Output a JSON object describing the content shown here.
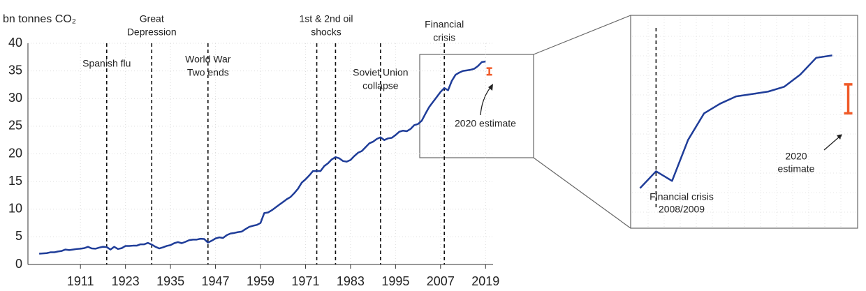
{
  "chart_data": {
    "type": "line",
    "y_label": "bn tonnes CO₂",
    "x": [
      1900,
      1901,
      1902,
      1903,
      1904,
      1905,
      1906,
      1907,
      1908,
      1909,
      1910,
      1911,
      1912,
      1913,
      1914,
      1915,
      1916,
      1917,
      1918,
      1919,
      1920,
      1921,
      1922,
      1923,
      1924,
      1925,
      1926,
      1927,
      1928,
      1929,
      1930,
      1931,
      1932,
      1933,
      1934,
      1935,
      1936,
      1937,
      1938,
      1939,
      1940,
      1941,
      1942,
      1943,
      1944,
      1945,
      1946,
      1947,
      1948,
      1949,
      1950,
      1951,
      1952,
      1953,
      1954,
      1955,
      1956,
      1957,
      1958,
      1959,
      1960,
      1961,
      1962,
      1963,
      1964,
      1965,
      1966,
      1967,
      1968,
      1969,
      1970,
      1971,
      1972,
      1973,
      1974,
      1975,
      1976,
      1977,
      1978,
      1979,
      1980,
      1981,
      1982,
      1983,
      1984,
      1985,
      1986,
      1987,
      1988,
      1989,
      1990,
      1991,
      1992,
      1993,
      1994,
      1995,
      1996,
      1997,
      1998,
      1999,
      2000,
      2001,
      2002,
      2003,
      2004,
      2005,
      2006,
      2007,
      2008,
      2009,
      2010,
      2011,
      2012,
      2013,
      2014,
      2015,
      2016,
      2017,
      2018,
      2019
    ],
    "values": [
      1.95,
      2.0,
      2.05,
      2.2,
      2.2,
      2.35,
      2.45,
      2.7,
      2.6,
      2.7,
      2.8,
      2.85,
      2.95,
      3.2,
      2.9,
      2.85,
      3.05,
      3.2,
      3.15,
      2.7,
      3.2,
      2.8,
      2.95,
      3.35,
      3.35,
      3.4,
      3.4,
      3.65,
      3.65,
      3.9,
      3.6,
      3.2,
      2.9,
      3.1,
      3.35,
      3.5,
      3.85,
      4.05,
      3.85,
      4.1,
      4.4,
      4.5,
      4.5,
      4.65,
      4.6,
      3.95,
      4.3,
      4.7,
      4.9,
      4.8,
      5.3,
      5.6,
      5.7,
      5.85,
      5.95,
      6.4,
      6.8,
      7.0,
      7.15,
      7.5,
      9.3,
      9.4,
      9.8,
      10.3,
      10.8,
      11.3,
      11.8,
      12.2,
      12.9,
      13.7,
      14.8,
      15.4,
      16.1,
      16.9,
      16.9,
      16.9,
      17.8,
      18.3,
      19.0,
      19.4,
      19.2,
      18.7,
      18.6,
      18.9,
      19.6,
      20.2,
      20.5,
      21.2,
      21.9,
      22.2,
      22.7,
      23.0,
      22.5,
      22.8,
      22.9,
      23.4,
      24.0,
      24.2,
      24.1,
      24.5,
      25.2,
      25.4,
      26.0,
      27.3,
      28.5,
      29.4,
      30.3,
      31.2,
      31.9,
      31.5,
      33.2,
      34.3,
      34.7,
      35.0,
      35.1,
      35.2,
      35.4,
      35.9,
      36.6,
      36.7
    ],
    "color": "#1f3d99",
    "xlim": [
      1897,
      2021
    ],
    "ylim": [
      0,
      40
    ],
    "xticks": [
      1911,
      1923,
      1935,
      1947,
      1959,
      1971,
      1983,
      1995,
      2007,
      2019
    ],
    "yticks": [
      0,
      5,
      10,
      15,
      20,
      25,
      30,
      35,
      40
    ],
    "grid": true,
    "events": [
      {
        "years": [
          1918
        ],
        "label": [
          "Spanish flu"
        ]
      },
      {
        "years": [
          1930
        ],
        "label": [
          "Great",
          "Depression"
        ]
      },
      {
        "years": [
          1945
        ],
        "label": [
          "World War",
          "Two ends"
        ]
      },
      {
        "years": [
          1974,
          1979
        ],
        "label": [
          "1st & 2nd oil",
          "shocks"
        ]
      },
      {
        "years": [
          1991
        ],
        "label": [
          "Soviet Union",
          "collapse"
        ]
      },
      {
        "years": [
          2008
        ],
        "label": [
          "Financial",
          "crisis"
        ]
      }
    ],
    "estimate": {
      "year": 2020,
      "low": 34.3,
      "high": 35.5,
      "color": "#f05a28",
      "label": "2020 estimate"
    },
    "inset": {
      "xlim": [
        2006.5,
        2020.5
      ],
      "ylim": [
        29.6,
        38.3
      ],
      "crisis_label": [
        "Financial crisis",
        "2008/2009"
      ],
      "estimate_label": [
        "2020",
        "estimate"
      ]
    }
  }
}
